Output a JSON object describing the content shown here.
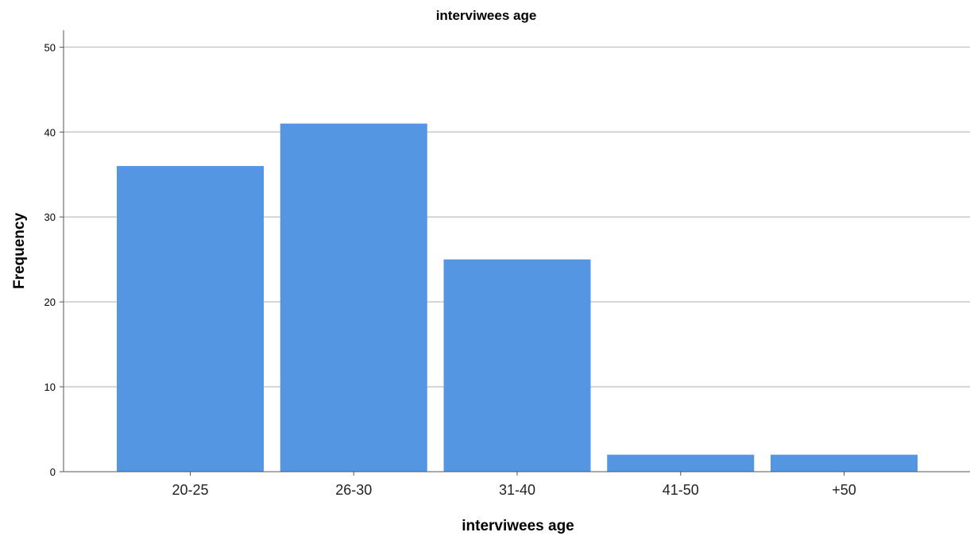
{
  "chart_data": {
    "type": "bar",
    "title": "interviwees age",
    "xlabel": "interviwees age",
    "ylabel": "Frequency",
    "categories": [
      "20-25",
      "26-30",
      "31-40",
      "41-50",
      "+50"
    ],
    "values": [
      36,
      41,
      25,
      2,
      2
    ],
    "ylim": [
      0,
      52
    ],
    "yticks": [
      "0",
      "10",
      "20",
      "30",
      "40",
      "50"
    ],
    "grid": true,
    "legend": "none",
    "bar_color": "#5596e3",
    "grid_color": "#c8c8c8",
    "axis_color": "#555555"
  }
}
